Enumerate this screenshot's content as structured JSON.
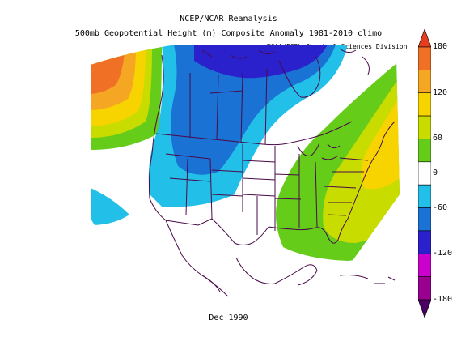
{
  "title": {
    "line1": "NCEP/NCAR Reanalysis",
    "line2": "500mb Geopotential Height (m) Composite Anomaly 1981-2010 climo"
  },
  "credit": "NOAA/ESRL Physical Sciences Division",
  "date_label": "Dec 1990",
  "colorbar": {
    "tick_labels": [
      "180",
      "120",
      "60",
      "0",
      "-60",
      "-120",
      "-180"
    ],
    "bins": [
      {
        "range": "> 180",
        "color": "#e63d1f"
      },
      {
        "range": "150..180",
        "color": "#f07025"
      },
      {
        "range": "120..150",
        "color": "#f5a623"
      },
      {
        "range": "90..120",
        "color": "#f7d400"
      },
      {
        "range": "60..90",
        "color": "#c9dc00"
      },
      {
        "range": "30..60",
        "color": "#66cc1a"
      },
      {
        "range": "-30..30",
        "color": "#ffffff"
      },
      {
        "range": "-60..-30",
        "color": "#22c0e8"
      },
      {
        "range": "-90..-60",
        "color": "#1a72d4"
      },
      {
        "range": "-120..-90",
        "color": "#2a20cc"
      },
      {
        "range": "-150..-120",
        "color": "#cc00cc"
      },
      {
        "range": "-180..-150",
        "color": "#99008f"
      },
      {
        "range": "< -180",
        "color": "#4a0060"
      }
    ]
  },
  "map": {
    "region": "North America (CONUS + southern Canada)",
    "field": "500mb geopotential height anomaly",
    "units": "m",
    "boundary_color": "#4a0a4a",
    "anomaly_regions": [
      {
        "name": "positive anomaly over Gulf of Alaska / NE Pacific",
        "max_bin": "> 180"
      },
      {
        "name": "negative anomaly over western Canada and northern/western US",
        "min_bin": "-120..-90"
      },
      {
        "name": "negative anomaly off Pacific coast",
        "min_bin": "-60..-30"
      },
      {
        "name": "positive anomaly over eastern US and western Atlantic",
        "max_bin": "90..120"
      }
    ]
  }
}
